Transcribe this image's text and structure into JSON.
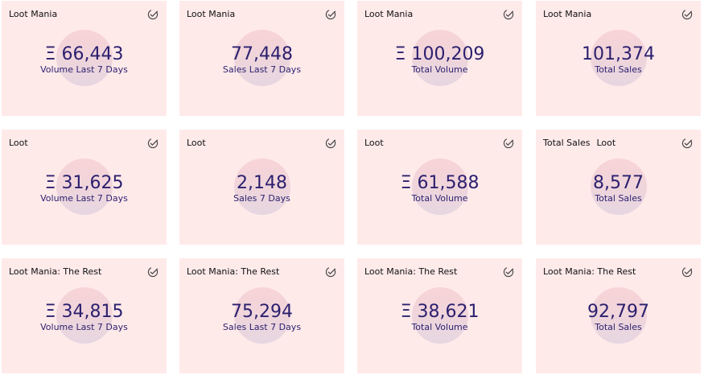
{
  "colors": {
    "card_background": "#ffeaea",
    "metric_text": "#2b1f6e",
    "title_text": "#111111",
    "blob_top": "#f8d4d6",
    "blob_bottom": "#e6d6e1"
  },
  "icons": {
    "card_status": "check-circle-icon"
  },
  "cards": [
    {
      "title": "Loot Mania",
      "subtitle": "",
      "value": "Ξ 66,443",
      "label": "Volume Last 7 Days"
    },
    {
      "title": "Loot Mania",
      "subtitle": "",
      "value": "77,448",
      "label": "Sales Last 7 Days"
    },
    {
      "title": "Loot Mania",
      "subtitle": "",
      "value": "Ξ 100,209",
      "label": "Total Volume"
    },
    {
      "title": "Loot Mania",
      "subtitle": "",
      "value": "101,374",
      "label": "Total Sales"
    },
    {
      "title": "Loot",
      "subtitle": "",
      "value": "Ξ 31,625",
      "label": "Volume Last 7 Days"
    },
    {
      "title": "Loot",
      "subtitle": "",
      "value": "2,148",
      "label": "Sales 7 Days"
    },
    {
      "title": "Loot",
      "subtitle": "",
      "value": "Ξ 61,588",
      "label": "Total Volume"
    },
    {
      "title": "Total Sales",
      "subtitle": "Loot",
      "value": "8,577",
      "label": "Total Sales"
    },
    {
      "title": "Loot Mania: The Rest",
      "subtitle": "",
      "value": "Ξ 34,815",
      "label": "Volume Last 7 Days"
    },
    {
      "title": "Loot Mania: The Rest",
      "subtitle": "",
      "value": "75,294",
      "label": "Sales Last 7 Days"
    },
    {
      "title": "Loot Mania: The Rest",
      "subtitle": "",
      "value": "Ξ 38,621",
      "label": "Total Volume"
    },
    {
      "title": "Loot Mania: The Rest",
      "subtitle": "",
      "value": "92,797",
      "label": "Total Sales"
    }
  ]
}
